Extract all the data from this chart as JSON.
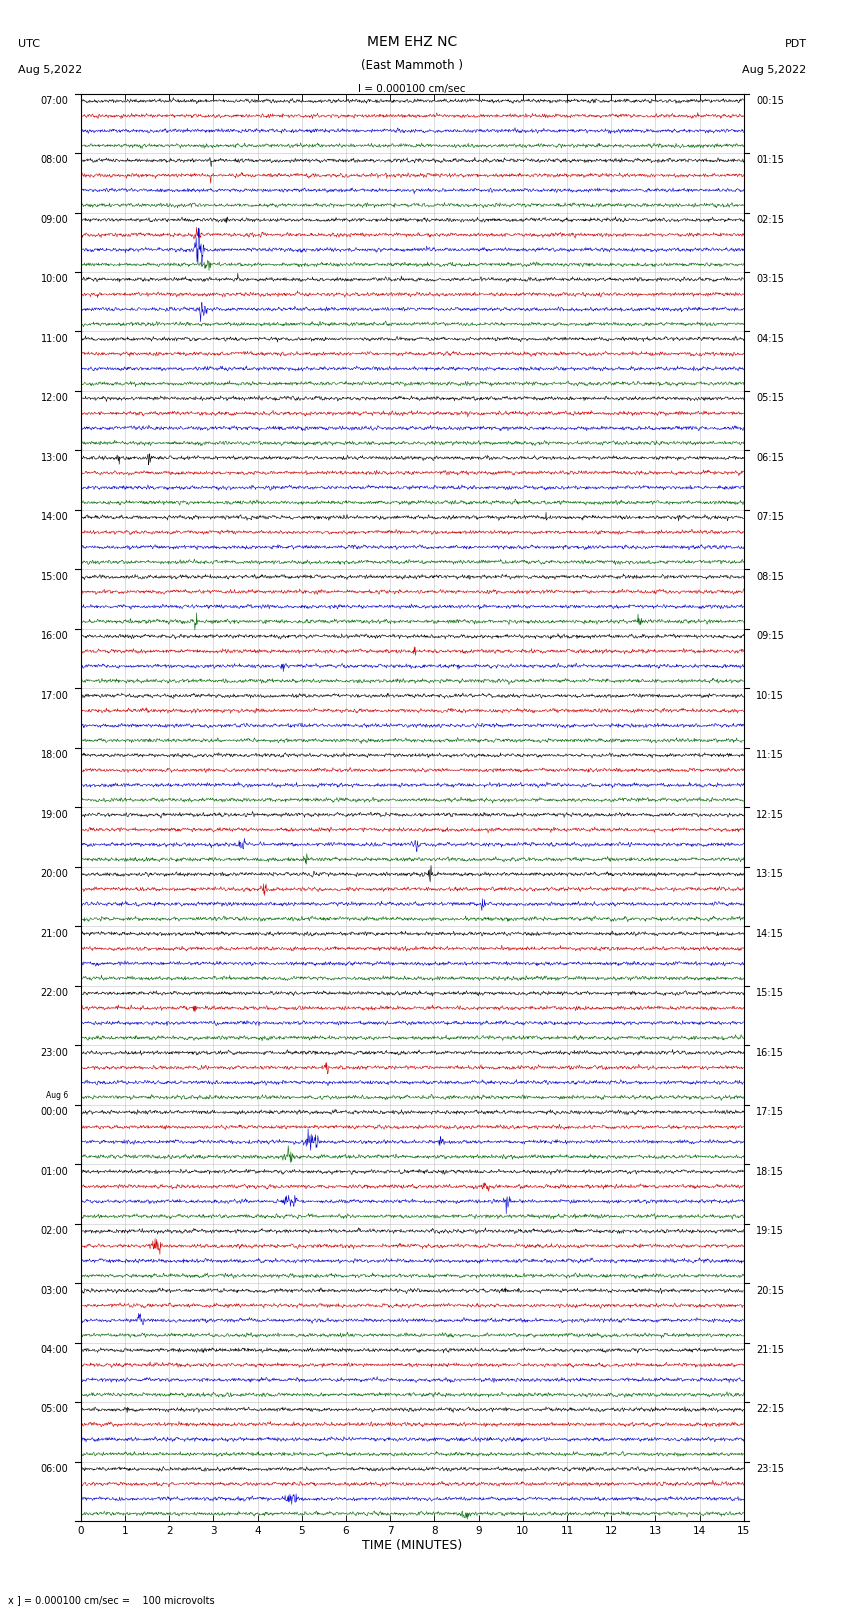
{
  "title_line1": "MEM EHZ NC",
  "title_line2": "(East Mammoth )",
  "title_line3": "I = 0.000100 cm/sec",
  "left_header_line1": "UTC",
  "left_header_line2": "Aug 5,2022",
  "right_header_line1": "PDT",
  "right_header_line2": "Aug 5,2022",
  "xlabel": "TIME (MINUTES)",
  "footer": "x ] = 0.000100 cm/sec =    100 microvolts",
  "bg_color": "#ffffff",
  "trace_colors": [
    "#000000",
    "#cc0000",
    "#0000cc",
    "#006600"
  ],
  "utc_labels": [
    "07:00",
    "08:00",
    "09:00",
    "10:00",
    "11:00",
    "12:00",
    "13:00",
    "14:00",
    "15:00",
    "16:00",
    "17:00",
    "18:00",
    "19:00",
    "20:00",
    "21:00",
    "22:00",
    "23:00",
    "Aug 6\n00:00",
    "01:00",
    "02:00",
    "03:00",
    "04:00",
    "05:00",
    "06:00"
  ],
  "pdt_labels": [
    "00:15",
    "01:15",
    "02:15",
    "03:15",
    "04:15",
    "05:15",
    "06:15",
    "07:15",
    "08:15",
    "09:15",
    "10:15",
    "11:15",
    "12:15",
    "13:15",
    "14:15",
    "15:15",
    "16:15",
    "17:15",
    "18:15",
    "19:15",
    "20:15",
    "21:15",
    "22:15",
    "23:15"
  ],
  "num_rows": 24,
  "traces_per_row": 4,
  "minutes_per_row": 15,
  "samples_per_minute": 100,
  "figsize": [
    8.5,
    16.13
  ],
  "dpi": 100,
  "grid_color": "#aaaaaa",
  "noise_std": [
    0.018,
    0.022,
    0.02,
    0.016
  ],
  "trace_amplitude_scale": 0.08,
  "events": [
    {
      "row": 1,
      "trace": 0,
      "t": 2.9,
      "dur": 0.08,
      "amp": 4.0
    },
    {
      "row": 1,
      "trace": 1,
      "t": 2.9,
      "dur": 0.08,
      "amp": 2.5
    },
    {
      "row": 2,
      "trace": 1,
      "t": 2.5,
      "dur": 0.25,
      "amp": 5.0
    },
    {
      "row": 2,
      "trace": 2,
      "t": 2.5,
      "dur": 0.35,
      "amp": 8.0
    },
    {
      "row": 2,
      "trace": 3,
      "t": 2.7,
      "dur": 0.3,
      "amp": 3.0
    },
    {
      "row": 2,
      "trace": 0,
      "t": 3.2,
      "dur": 0.2,
      "amp": 2.0
    },
    {
      "row": 3,
      "trace": 2,
      "t": 2.6,
      "dur": 0.3,
      "amp": 4.0
    },
    {
      "row": 3,
      "trace": 0,
      "t": 3.5,
      "dur": 0.1,
      "amp": 2.0
    },
    {
      "row": 6,
      "trace": 0,
      "t": 0.8,
      "dur": 0.12,
      "amp": 3.5
    },
    {
      "row": 6,
      "trace": 0,
      "t": 1.5,
      "dur": 0.1,
      "amp": 5.0
    },
    {
      "row": 7,
      "trace": 0,
      "t": 10.5,
      "dur": 0.08,
      "amp": 4.0
    },
    {
      "row": 7,
      "trace": 0,
      "t": 13.5,
      "dur": 0.05,
      "amp": 3.5
    },
    {
      "row": 8,
      "trace": 3,
      "t": 2.5,
      "dur": 0.2,
      "amp": 2.5
    },
    {
      "row": 8,
      "trace": 3,
      "t": 12.5,
      "dur": 0.3,
      "amp": 3.0
    },
    {
      "row": 9,
      "trace": 2,
      "t": 4.5,
      "dur": 0.15,
      "amp": 3.0
    },
    {
      "row": 9,
      "trace": 1,
      "t": 7.5,
      "dur": 0.15,
      "amp": 2.5
    },
    {
      "row": 9,
      "trace": 2,
      "t": 8.5,
      "dur": 0.1,
      "amp": 2.5
    },
    {
      "row": 12,
      "trace": 2,
      "t": 3.5,
      "dur": 0.3,
      "amp": 3.5
    },
    {
      "row": 12,
      "trace": 3,
      "t": 5.0,
      "dur": 0.2,
      "amp": 2.5
    },
    {
      "row": 12,
      "trace": 2,
      "t": 7.5,
      "dur": 0.2,
      "amp": 3.0
    },
    {
      "row": 13,
      "trace": 1,
      "t": 4.0,
      "dur": 0.3,
      "amp": 3.0
    },
    {
      "row": 13,
      "trace": 0,
      "t": 7.8,
      "dur": 0.2,
      "amp": 3.5
    },
    {
      "row": 13,
      "trace": 2,
      "t": 9.0,
      "dur": 0.2,
      "amp": 3.0
    },
    {
      "row": 15,
      "trace": 1,
      "t": 2.5,
      "dur": 0.15,
      "amp": 2.5
    },
    {
      "row": 16,
      "trace": 1,
      "t": 5.5,
      "dur": 0.15,
      "amp": 3.0
    },
    {
      "row": 17,
      "trace": 2,
      "t": 5.0,
      "dur": 0.5,
      "amp": 4.5
    },
    {
      "row": 17,
      "trace": 2,
      "t": 8.0,
      "dur": 0.3,
      "amp": 3.0
    },
    {
      "row": 17,
      "trace": 3,
      "t": 4.5,
      "dur": 0.4,
      "amp": 3.0
    },
    {
      "row": 18,
      "trace": 2,
      "t": 4.5,
      "dur": 0.5,
      "amp": 4.0
    },
    {
      "row": 18,
      "trace": 2,
      "t": 9.5,
      "dur": 0.3,
      "amp": 3.5
    },
    {
      "row": 18,
      "trace": 1,
      "t": 9.0,
      "dur": 0.3,
      "amp": 3.0
    },
    {
      "row": 19,
      "trace": 1,
      "t": 1.5,
      "dur": 0.4,
      "amp": 3.5
    },
    {
      "row": 20,
      "trace": 0,
      "t": 9.5,
      "dur": 0.15,
      "amp": 3.0
    },
    {
      "row": 20,
      "trace": 2,
      "t": 1.2,
      "dur": 0.3,
      "amp": 3.0
    },
    {
      "row": 21,
      "trace": 0,
      "t": 5.5,
      "dur": 0.15,
      "amp": 3.0
    },
    {
      "row": 22,
      "trace": 0,
      "t": 1.0,
      "dur": 0.12,
      "amp": 3.0
    },
    {
      "row": 23,
      "trace": 2,
      "t": 4.5,
      "dur": 0.5,
      "amp": 3.5
    },
    {
      "row": 23,
      "trace": 3,
      "t": 8.5,
      "dur": 0.4,
      "amp": 3.0
    }
  ]
}
